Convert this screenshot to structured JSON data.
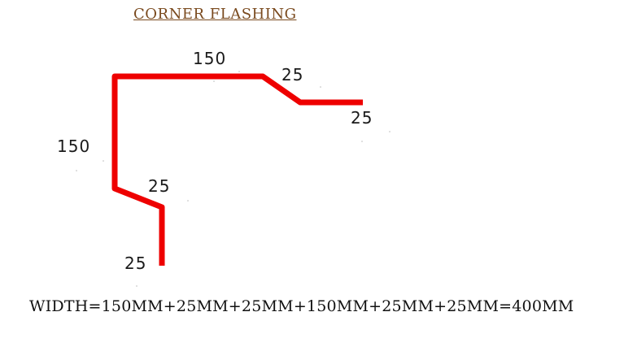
{
  "title": "CORNER FLASHING",
  "dimensions": {
    "top_long": "150",
    "top_slope": "25",
    "top_end": "25",
    "left_long": "150",
    "bottom_slope": "25",
    "bottom_end": "25"
  },
  "formula": "WIDTH=150MM+25MM+25MM+150MM+25MM+25MM=400MM",
  "colors": {
    "profile": "#ee0000",
    "title": "#7a4a1e",
    "text": "#111111"
  }
}
